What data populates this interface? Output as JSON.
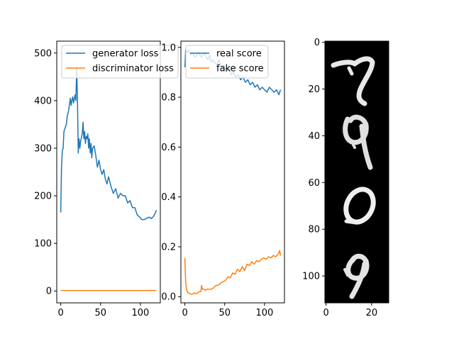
{
  "chart_data": [
    {
      "type": "line",
      "title": "",
      "xlabel": "",
      "ylabel": "",
      "xlim": [
        -5,
        125
      ],
      "ylim": [
        -25,
        525
      ],
      "xticks": [
        0,
        50,
        100
      ],
      "yticks": [
        0,
        100,
        200,
        300,
        400,
        500
      ],
      "legend": "top-right",
      "grid": false,
      "series": [
        {
          "name": "generator loss",
          "color": "#1f77b4",
          "x": [
            0,
            1,
            2,
            3,
            4,
            5,
            6,
            7,
            8,
            10,
            12,
            13,
            14,
            15,
            16,
            18,
            19,
            20,
            21,
            22,
            23,
            24,
            25,
            27,
            28,
            29,
            30,
            31,
            32,
            33,
            34,
            35,
            36,
            37,
            38,
            39,
            40,
            42,
            44,
            46,
            48,
            50,
            52,
            54,
            56,
            58,
            60,
            63,
            66,
            69,
            72,
            75,
            78,
            81,
            84,
            87,
            90,
            93,
            96,
            99,
            102,
            105,
            108,
            111,
            114,
            117,
            119,
            120
          ],
          "y": [
            165,
            260,
            295,
            300,
            335,
            340,
            345,
            350,
            365,
            380,
            405,
            390,
            400,
            408,
            395,
            412,
            400,
            470,
            405,
            290,
            320,
            300,
            315,
            330,
            355,
            320,
            335,
            310,
            325,
            320,
            330,
            300,
            320,
            290,
            310,
            280,
            300,
            305,
            285,
            260,
            275,
            255,
            245,
            255,
            235,
            225,
            240,
            220,
            205,
            215,
            195,
            205,
            200,
            200,
            185,
            190,
            175,
            175,
            160,
            155,
            150,
            150,
            153,
            155,
            152,
            158,
            165,
            170
          ]
        },
        {
          "name": "discriminator loss",
          "color": "#ff7f0e",
          "x": [
            0,
            10,
            20,
            30,
            40,
            50,
            60,
            70,
            80,
            90,
            100,
            110,
            120
          ],
          "y": [
            1,
            1,
            1,
            1,
            1,
            1,
            1,
            1,
            1,
            1,
            1,
            1,
            1
          ]
        }
      ]
    },
    {
      "type": "line",
      "title": "",
      "xlabel": "",
      "ylabel": "",
      "xlim": [
        -5,
        125
      ],
      "ylim": [
        -0.025,
        1.025
      ],
      "xticks": [
        0,
        50,
        100
      ],
      "yticks": [
        0.0,
        0.2,
        0.4,
        0.6,
        0.8,
        1.0
      ],
      "legend": "top-left",
      "grid": false,
      "series": [
        {
          "name": "real score",
          "color": "#1f77b4",
          "x": [
            0,
            1,
            3,
            5,
            7,
            9,
            11,
            13,
            15,
            17,
            19,
            21,
            23,
            25,
            27,
            29,
            31,
            33,
            35,
            37,
            40,
            43,
            46,
            49,
            52,
            55,
            58,
            61,
            64,
            67,
            70,
            73,
            76,
            79,
            82,
            85,
            88,
            91,
            94,
            97,
            100,
            103,
            106,
            109,
            112,
            115,
            118,
            120
          ],
          "y": [
            0.92,
            0.99,
            0.98,
            0.99,
            0.97,
            0.98,
            0.97,
            0.96,
            0.97,
            0.98,
            0.97,
            0.96,
            0.97,
            0.98,
            0.96,
            0.95,
            0.97,
            0.94,
            0.95,
            0.94,
            0.93,
            0.95,
            0.92,
            0.93,
            0.9,
            0.92,
            0.89,
            0.9,
            0.88,
            0.89,
            0.87,
            0.88,
            0.86,
            0.87,
            0.85,
            0.86,
            0.84,
            0.85,
            0.83,
            0.84,
            0.83,
            0.82,
            0.84,
            0.83,
            0.82,
            0.83,
            0.81,
            0.83
          ]
        },
        {
          "name": "fake score",
          "color": "#ff7f0e",
          "x": [
            0,
            1,
            2,
            3,
            4,
            6,
            8,
            10,
            12,
            14,
            16,
            18,
            20,
            21,
            22,
            24,
            26,
            28,
            30,
            33,
            36,
            39,
            42,
            45,
            48,
            51,
            54,
            57,
            60,
            63,
            66,
            69,
            72,
            75,
            78,
            81,
            84,
            87,
            90,
            93,
            96,
            99,
            102,
            105,
            108,
            111,
            114,
            117,
            119,
            120
          ],
          "y": [
            0.155,
            0.06,
            0.03,
            0.02,
            0.015,
            0.012,
            0.01,
            0.01,
            0.015,
            0.012,
            0.015,
            0.02,
            0.02,
            0.045,
            0.03,
            0.03,
            0.025,
            0.03,
            0.03,
            0.03,
            0.035,
            0.045,
            0.045,
            0.055,
            0.06,
            0.065,
            0.08,
            0.075,
            0.095,
            0.09,
            0.11,
            0.1,
            0.12,
            0.105,
            0.13,
            0.125,
            0.14,
            0.13,
            0.145,
            0.14,
            0.15,
            0.155,
            0.15,
            0.16,
            0.155,
            0.165,
            0.16,
            0.17,
            0.185,
            0.165
          ]
        }
      ]
    },
    {
      "type": "image",
      "title": "",
      "width": 28,
      "height": 112,
      "xticks": [
        0,
        20
      ],
      "yticks": [
        0,
        20,
        40,
        60,
        80,
        100
      ],
      "colormap": "gray",
      "content": "four vertically stacked generated handwritten digits: 7, 4, 0, 9"
    }
  ]
}
